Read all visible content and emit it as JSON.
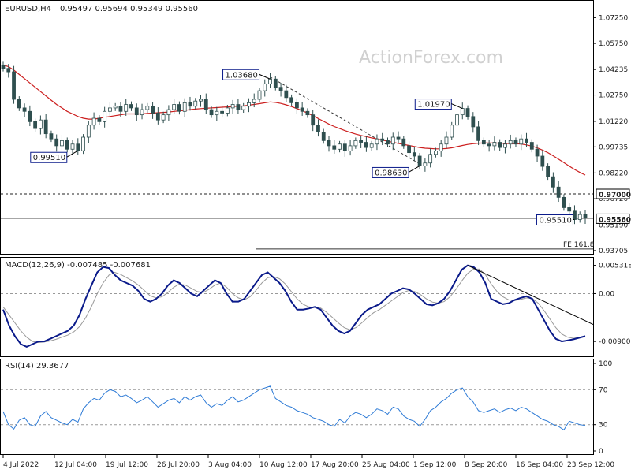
{
  "header": {
    "symbol": "EURUSD,H4",
    "ohlc": "0.95497 0.95694 0.95349 0.95560"
  },
  "watermark": "ActionForex.com",
  "colors": {
    "candle": "#2f4f4f",
    "ma": "#cc1f1f",
    "macd": "#0a1a8a",
    "signal": "#999999",
    "rsi": "#2e7bd6",
    "trend": "#000000",
    "box_border": "#0a1a8a"
  },
  "chart_data": [
    {
      "type": "candlestick",
      "title": "",
      "y_ticks": [
        "1.07250",
        "1.05750",
        "1.04235",
        "1.02750",
        "1.01220",
        "0.99735",
        "0.98220",
        "0.96720",
        "0.95190",
        "0.93705"
      ],
      "ylim": [
        0.937,
        1.08
      ],
      "ma_label": "",
      "x_labels": [
        "4 Jul 2022",
        "12 Jul 04:00",
        "19 Jul 12:00",
        "26 Jul 20:00",
        "3 Aug 04:00",
        "10 Aug 12:00",
        "17 Aug 20:00",
        "25 Aug 04:00",
        "1 Sep 12:00",
        "8 Sep 20:00",
        "16 Sep 04:00",
        "23 Sep 12:00"
      ],
      "annotations": [
        {
          "text": "0.99510",
          "value": 0.9951
        },
        {
          "text": "1.03680",
          "value": 1.0368
        },
        {
          "text": "0.98630",
          "value": 0.9863
        },
        {
          "text": "1.01970",
          "value": 1.0197
        },
        {
          "text": "0.95510",
          "value": 0.9551
        }
      ],
      "level_labels": [
        {
          "text": "0.97000",
          "value": 0.97
        },
        {
          "text": "0.95560",
          "value": 0.9556
        }
      ],
      "fe_label": "FE 161.8",
      "fe_value": 0.938,
      "closes": [
        1.043,
        1.041,
        1.025,
        1.02,
        1.018,
        1.012,
        1.008,
        1.013,
        1.005,
        1.002,
        0.998,
        1.001,
        0.996,
        0.999,
        0.9951,
        1.003,
        1.01,
        1.014,
        1.012,
        1.018,
        1.02,
        1.021,
        1.018,
        1.022,
        1.02,
        1.016,
        1.019,
        1.021,
        1.017,
        1.013,
        1.016,
        1.019,
        1.022,
        1.018,
        1.023,
        1.021,
        1.024,
        1.025,
        1.019,
        1.016,
        1.018,
        1.017,
        1.02,
        1.022,
        1.019,
        1.021,
        1.023,
        1.025,
        1.03,
        1.034,
        1.0368,
        1.032,
        1.03,
        1.026,
        1.023,
        1.02,
        1.018,
        1.016,
        1.01,
        1.006,
        1.001,
        0.998,
        0.996,
        0.999,
        0.995,
        0.998,
        1.001,
        1.0,
        0.997,
        0.999,
        1.002,
        1.001,
        0.999,
        1.003,
        1.002,
        0.998,
        0.994,
        0.992,
        0.9863,
        0.988,
        0.993,
        0.995,
        0.999,
        1.003,
        1.01,
        1.016,
        1.0197,
        1.015,
        1.009,
        1.001,
        0.999,
        0.998,
        1.0,
        0.997,
        0.999,
        1.001,
        0.999,
        1.002,
        1.0,
        0.996,
        0.992,
        0.986,
        0.98,
        0.974,
        0.968,
        0.962,
        0.96,
        0.9551,
        0.958,
        0.956
      ],
      "ma": [
        1.045,
        1.044,
        1.042,
        1.0395,
        1.037,
        1.0345,
        1.032,
        1.0295,
        1.027,
        1.0245,
        1.022,
        1.02,
        1.018,
        1.0165,
        1.015,
        1.014,
        1.0135,
        1.0135,
        1.014,
        1.0145,
        1.015,
        1.0155,
        1.016,
        1.0165,
        1.0165,
        1.0165,
        1.0165,
        1.0168,
        1.017,
        1.0172,
        1.0174,
        1.0176,
        1.018,
        1.0183,
        1.0186,
        1.019,
        1.0193,
        1.0196,
        1.0198,
        1.02,
        1.0202,
        1.0204,
        1.0206,
        1.0208,
        1.021,
        1.0212,
        1.0216,
        1.022,
        1.0225,
        1.023,
        1.0235,
        1.0232,
        1.0226,
        1.0218,
        1.0208,
        1.0196,
        1.0184,
        1.017,
        1.0155,
        1.0138,
        1.0122,
        1.0106,
        1.0092,
        1.008,
        1.0068,
        1.0058,
        1.0048,
        1.004,
        1.0033,
        1.0026,
        1.002,
        1.0013,
        1.0006,
        1.0,
        0.9994,
        0.9988,
        0.9982,
        0.9976,
        0.997,
        0.9966,
        0.9964,
        0.9962,
        0.9962,
        0.9964,
        0.9968,
        0.9975,
        0.9982,
        0.9988,
        0.9992,
        0.9995,
        0.9996,
        0.9996,
        0.9996,
        0.9995,
        0.9994,
        0.9993,
        0.9992,
        0.999,
        0.9985,
        0.9978,
        0.9968,
        0.9955,
        0.994,
        0.9922,
        0.9902,
        0.9882,
        0.9862,
        0.9842,
        0.9825,
        0.981
      ]
    },
    {
      "type": "line",
      "title": "MACD(12,26,9) -0.007485 -0.007681",
      "y_ticks": [
        "0.005318",
        "0.00",
        "-0.009001"
      ],
      "ylim": [
        -0.0115,
        0.006
      ],
      "zero_label": "0.00",
      "macd": [
        -0.003,
        -0.006,
        -0.008,
        -0.0095,
        -0.01,
        -0.0095,
        -0.009,
        -0.009,
        -0.0085,
        -0.008,
        -0.0075,
        -0.007,
        -0.006,
        -0.004,
        -0.001,
        0.0015,
        0.004,
        0.005,
        0.0048,
        0.0035,
        0.0025,
        0.002,
        0.0015,
        0.0005,
        -0.001,
        -0.0015,
        -0.001,
        0.0,
        0.0015,
        0.0025,
        0.002,
        0.001,
        0.0,
        -0.0005,
        0.0005,
        0.0015,
        0.0025,
        0.002,
        0.0,
        -0.0015,
        -0.0015,
        -0.001,
        0.0005,
        0.002,
        0.0035,
        0.004,
        0.003,
        0.002,
        0.0005,
        -0.0015,
        -0.003,
        -0.003,
        -0.0028,
        -0.0025,
        -0.003,
        -0.0045,
        -0.006,
        -0.007,
        -0.0075,
        -0.007,
        -0.0055,
        -0.004,
        -0.003,
        -0.0025,
        -0.002,
        -0.001,
        0.0,
        0.0005,
        0.001,
        0.0008,
        0.0,
        -0.001,
        -0.002,
        -0.0022,
        -0.0018,
        -0.001,
        0.0005,
        0.0025,
        0.0045,
        0.0053,
        0.005,
        0.004,
        0.002,
        -0.001,
        -0.0015,
        -0.002,
        -0.0018,
        -0.0012,
        -0.0008,
        -0.0005,
        -0.001,
        -0.003,
        -0.005,
        -0.007,
        -0.0085,
        -0.009,
        -0.0088,
        -0.0086,
        -0.0083,
        -0.008
      ],
      "signal": [
        -0.0025,
        -0.004,
        -0.0055,
        -0.007,
        -0.0082,
        -0.009,
        -0.0092,
        -0.0091,
        -0.0089,
        -0.0086,
        -0.0082,
        -0.0078,
        -0.0072,
        -0.0062,
        -0.0046,
        -0.0025,
        0.0,
        0.002,
        0.0035,
        0.004,
        0.0036,
        0.003,
        0.0024,
        0.0016,
        0.0006,
        -0.0004,
        -0.0008,
        -0.0006,
        0.0002,
        0.0012,
        0.0018,
        0.0016,
        0.001,
        0.0004,
        0.0002,
        0.0008,
        0.0016,
        0.002,
        0.0012,
        0.0,
        -0.0008,
        -0.0012,
        -0.0006,
        0.0006,
        0.002,
        0.003,
        0.0032,
        0.0028,
        0.0018,
        0.0004,
        -0.001,
        -0.002,
        -0.0025,
        -0.0026,
        -0.0027,
        -0.0035,
        -0.0045,
        -0.0055,
        -0.0064,
        -0.0068,
        -0.0064,
        -0.0055,
        -0.0045,
        -0.0036,
        -0.003,
        -0.0022,
        -0.0014,
        -0.0006,
        0.0002,
        0.0006,
        0.0004,
        -0.0002,
        -0.001,
        -0.0016,
        -0.0018,
        -0.0015,
        -0.0006,
        0.0008,
        0.0024,
        0.0038,
        0.0046,
        0.0046,
        0.0036,
        0.0018,
        0.0004,
        -0.0006,
        -0.0012,
        -0.0013,
        -0.0011,
        -0.0008,
        -0.0009,
        -0.0018,
        -0.0032,
        -0.0048,
        -0.0064,
        -0.0076,
        -0.0082,
        -0.0084,
        -0.0082,
        -0.008
      ]
    },
    {
      "type": "line",
      "title": "RSI(14) 29.3677",
      "y_ticks": [
        "100",
        "70",
        "30",
        "0"
      ],
      "ylim": [
        0,
        100
      ],
      "levels": [
        70,
        30
      ],
      "rsi": [
        45,
        30,
        25,
        35,
        38,
        30,
        28,
        40,
        45,
        38,
        35,
        32,
        30,
        36,
        33,
        48,
        55,
        60,
        58,
        66,
        70,
        68,
        62,
        64,
        60,
        55,
        58,
        62,
        56,
        50,
        54,
        58,
        60,
        55,
        62,
        58,
        62,
        64,
        55,
        50,
        54,
        52,
        58,
        62,
        56,
        58,
        62,
        66,
        70,
        72,
        74,
        60,
        56,
        52,
        50,
        46,
        44,
        42,
        38,
        36,
        34,
        30,
        28,
        36,
        32,
        40,
        44,
        42,
        38,
        42,
        48,
        46,
        42,
        50,
        48,
        40,
        36,
        34,
        28,
        36,
        46,
        50,
        56,
        60,
        66,
        70,
        72,
        62,
        56,
        46,
        44,
        46,
        48,
        44,
        47,
        49,
        46,
        50,
        48,
        44,
        40,
        36,
        34,
        30,
        28,
        24,
        34,
        32,
        30,
        29
      ]
    }
  ]
}
